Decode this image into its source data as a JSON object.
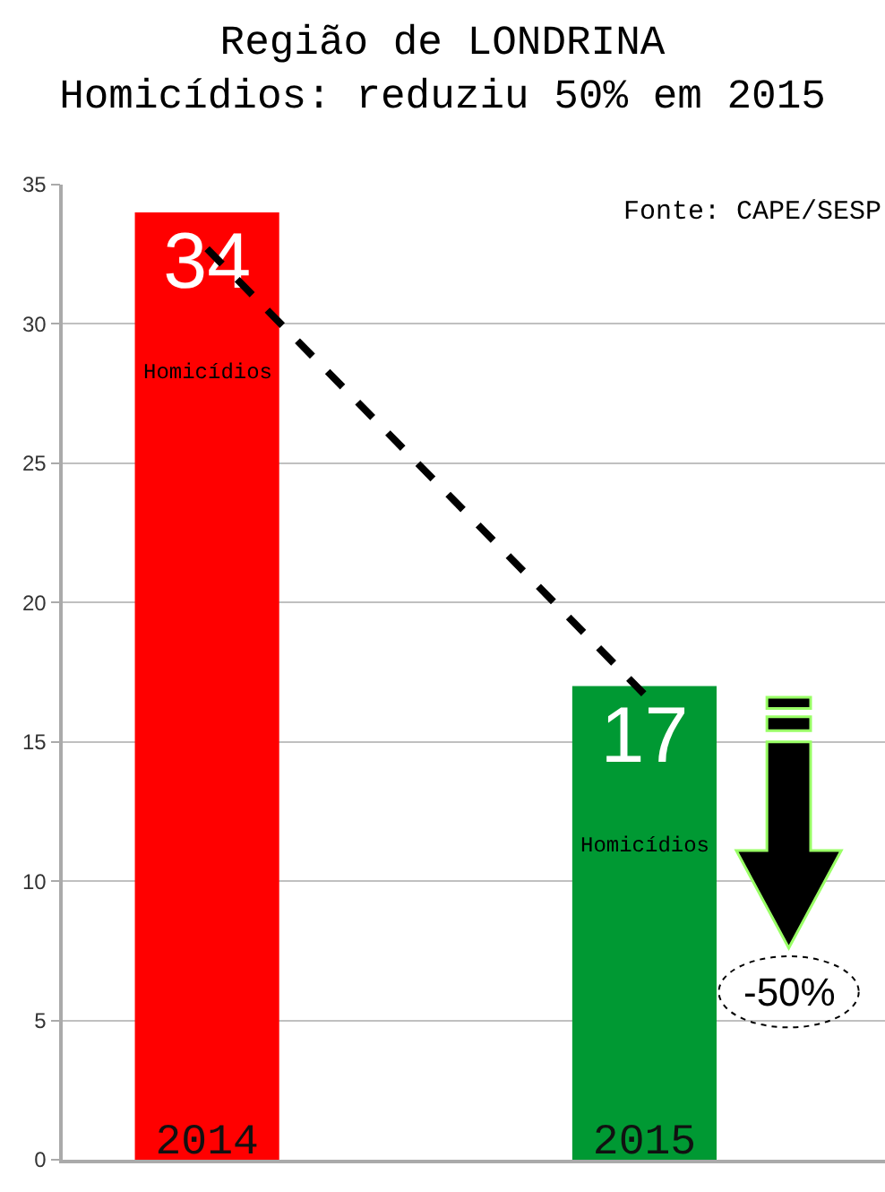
{
  "chart_data": {
    "type": "bar",
    "title": "Região de LONDRINA\nHomicídios: reduziu 50% em 2015",
    "categories": [
      "2014",
      "2015"
    ],
    "series": [
      {
        "values": [
          34,
          17
        ],
        "colors": [
          "#ff0000",
          "#009933"
        ],
        "value_labels": [
          "34",
          "17"
        ]
      },
      {
        "type": "line",
        "values": [
          32.7,
          16.7
        ],
        "color": "#000000",
        "line_style": "dashed"
      }
    ],
    "annotations": [
      "Fonte: CAPE/SESP",
      "Homicídios",
      "Homicídios",
      "-50%"
    ],
    "ylim": [
      0,
      35
    ],
    "yticks": [
      0,
      5,
      10,
      15,
      20,
      25,
      30,
      35
    ],
    "grid": "y",
    "legend": false
  }
}
